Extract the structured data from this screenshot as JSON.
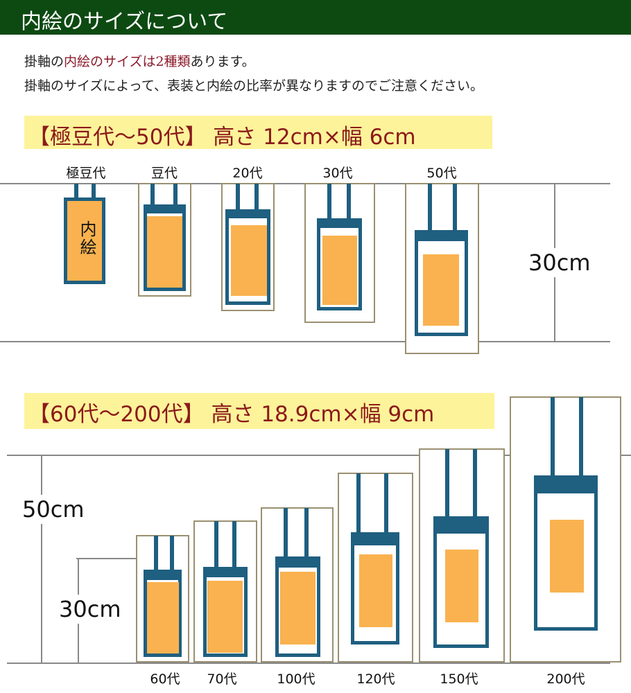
{
  "header": {
    "title": "内絵のサイズについて"
  },
  "intro": {
    "line1": [
      "掛軸の",
      "内絵のサイズは2種類",
      "あります。"
    ],
    "line2": "掛軸のサイズによって、表装と内絵の比率が異なりますのでご注意ください。"
  },
  "sections": [
    {
      "title": "【極豆代～50代】 高さ 12cm×幅 6cm",
      "labels": [
        "極豆代",
        "豆代",
        "20代",
        "30代",
        "50代"
      ],
      "inner_label": "内絵",
      "measures": [
        "30cm"
      ]
    },
    {
      "title": "【60代～200代】 高さ 18.9cm×幅 9cm",
      "labels": [
        "60代",
        "70代",
        "100代",
        "120代",
        "150代",
        "200代"
      ],
      "measures": [
        "50cm",
        "30cm"
      ]
    }
  ]
}
